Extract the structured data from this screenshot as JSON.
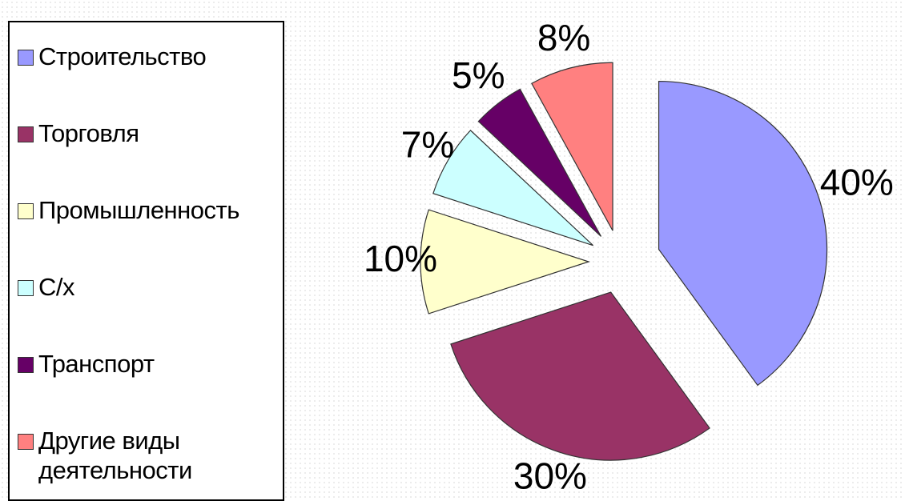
{
  "chart_data": {
    "type": "pie",
    "exploded": true,
    "legend_position": "left",
    "slices": [
      {
        "name": "Строительство",
        "value": 40,
        "label": "40%",
        "color": "#9999ff"
      },
      {
        "name": "Торговля",
        "value": 30,
        "label": "30%",
        "color": "#993366"
      },
      {
        "name": "Промышленность",
        "value": 10,
        "label": "10%",
        "color": "#ffffcc"
      },
      {
        "name": "С/х",
        "value": 7,
        "label": "7%",
        "color": "#ccffff"
      },
      {
        "name": "Транспорт",
        "value": 5,
        "label": "5%",
        "color": "#660066"
      },
      {
        "name": "Другие виды деятельности",
        "value": 8,
        "label": "8%",
        "color": "#ff8080"
      }
    ]
  }
}
